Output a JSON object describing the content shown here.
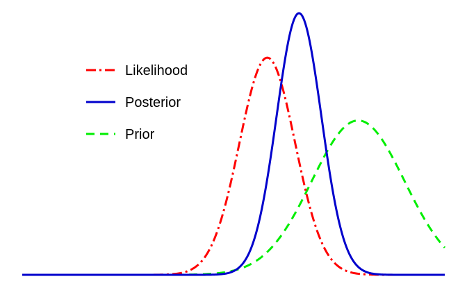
{
  "chart_data": {
    "type": "line",
    "title": "",
    "xlabel": "",
    "ylabel": "",
    "axes_visible": false,
    "grid": false,
    "legend_position": "upper-left",
    "xlim": [
      0,
      1
    ],
    "ylim": [
      0,
      1
    ],
    "series": [
      {
        "name": "Likelihood",
        "color": "#ff0000",
        "linestyle": "dash-dot",
        "shape": "gaussian",
        "mean": 0.58,
        "sd": 0.066,
        "peak": 0.83
      },
      {
        "name": "Posterior",
        "color": "#0000cc",
        "linestyle": "solid",
        "shape": "gaussian",
        "mean": 0.655,
        "sd": 0.053,
        "peak": 1.0
      },
      {
        "name": "Prior",
        "color": "#00ee00",
        "linestyle": "dashed",
        "shape": "gaussian",
        "mean": 0.795,
        "sd": 0.11,
        "peak": 0.59
      }
    ]
  }
}
